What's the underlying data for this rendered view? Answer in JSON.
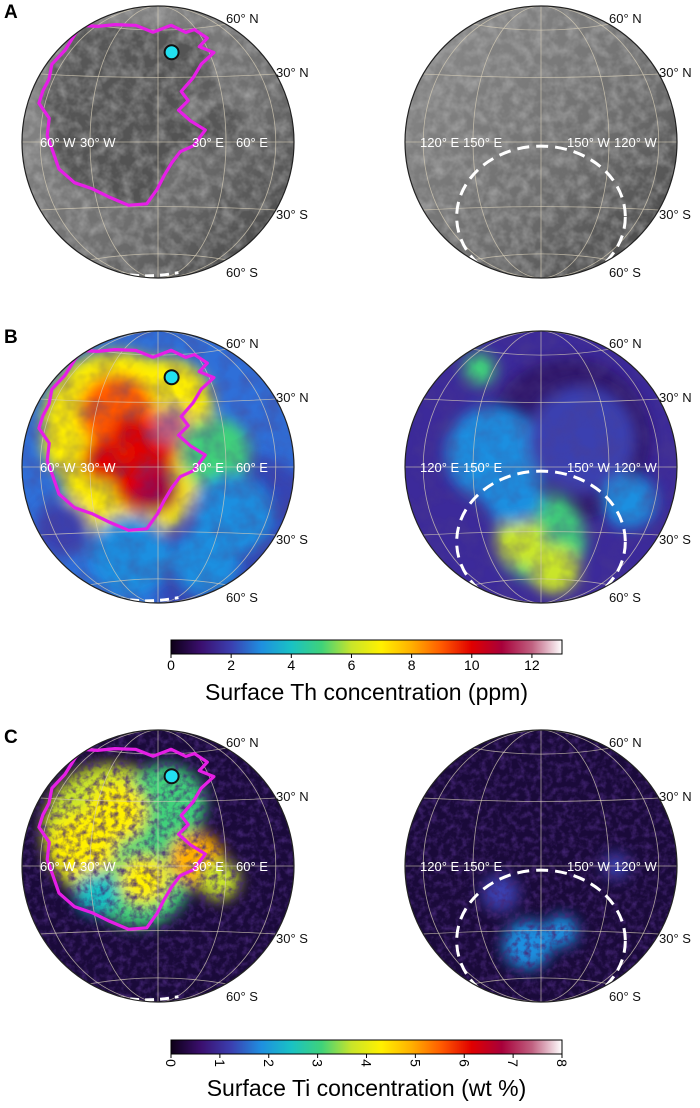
{
  "panels": [
    {
      "letter": "A",
      "style": "albedo",
      "label_near_side": {
        "lat_n60": "60° N",
        "lat_n30": "30° N",
        "lon_w60": "60° W",
        "lon_w30": "30° W",
        "lon_e30": "30° E",
        "lon_e60": "60° E",
        "lat_s30": "30° S",
        "lat_s60": "60° S"
      },
      "label_far_side": {
        "lat_n60": "60° N",
        "lat_n30": "30° N",
        "lon_e120": "120° E",
        "lon_e150": "150° E",
        "lon_w150": "150° W",
        "lon_w120": "120° W",
        "lat_s30": "30° S",
        "lat_s60": "60° S"
      }
    },
    {
      "letter": "B",
      "style": "thorium",
      "label_near_side": {
        "lat_n60": "60° N",
        "lat_n30": "30° N",
        "lon_w60": "60° W",
        "lon_w30": "30° W",
        "lon_e30": "30° E",
        "lon_e60": "60° E",
        "lat_s30": "30° S",
        "lat_s60": "60° S"
      },
      "label_far_side": {
        "lat_n60": "60° N",
        "lat_n30": "30° N",
        "lon_e120": "120° E",
        "lon_e150": "150° E",
        "lon_w150": "150° W",
        "lon_w120": "120° W",
        "lat_s30": "30° S",
        "lat_s60": "60° S"
      }
    },
    {
      "letter": "C",
      "style": "titanium",
      "label_near_side": {
        "lat_n60": "60° N",
        "lat_n30": "30° N",
        "lon_w60": "60° W",
        "lon_w30": "30° W",
        "lon_e30": "30° E",
        "lon_e60": "60° E",
        "lat_s30": "30° S",
        "lat_s60": "60° S"
      },
      "label_far_side": {
        "lat_n60": "60° N",
        "lat_n30": "30° N",
        "lon_e120": "120° E",
        "lon_e150": "150° E",
        "lon_w150": "150° W",
        "lon_w120": "120° W",
        "lat_s30": "30° S",
        "lat_s60": "60° S"
      }
    }
  ],
  "colorbars": [
    {
      "id": "th",
      "title": "Surface Th concentration (ppm)",
      "min": 0,
      "max": 13,
      "ticks": [
        "0",
        "2",
        "4",
        "6",
        "8",
        "10",
        "12"
      ],
      "tick_values": [
        0,
        2,
        4,
        6,
        8,
        10,
        12
      ],
      "rotated": false
    },
    {
      "id": "ti",
      "title": "Surface Ti concentration (wt %)",
      "min": 0,
      "max": 8,
      "ticks": [
        "0",
        "1",
        "2",
        "3",
        "4",
        "5",
        "6",
        "7",
        "8"
      ],
      "tick_values": [
        0,
        1,
        2,
        3,
        4,
        5,
        6,
        7,
        8
      ],
      "rotated": true
    }
  ],
  "colormap": [
    "#0d0017",
    "#3b0f6f",
    "#3b3fb0",
    "#1f8fe0",
    "#19c2c4",
    "#3fd27a",
    "#c9e52a",
    "#fff000",
    "#ffb000",
    "#ff5a00",
    "#e00000",
    "#a8003a",
    "#c06080",
    "#ffffff"
  ],
  "colors": {
    "procellarum_outline": "#e61ee6",
    "site_marker": "#22e0f0",
    "spa_outline": "#ffffff",
    "grid": "#d8cfb8",
    "label_text": "#ffffff",
    "outside_label_text": "#111111"
  }
}
